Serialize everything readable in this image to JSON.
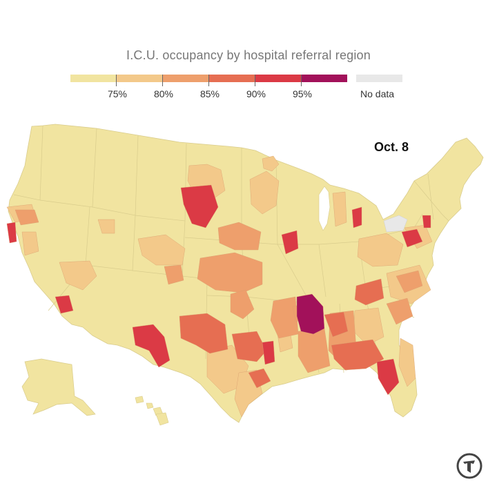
{
  "title": "I.C.U. occupancy by hospital referral region",
  "date_label": "Oct. 8",
  "legend": {
    "bins": [
      {
        "label": "",
        "color": "#f1e4a0"
      },
      {
        "label": "75%",
        "color": "#f3c98a"
      },
      {
        "label": "80%",
        "color": "#ee9f6c"
      },
      {
        "label": "85%",
        "color": "#e66e52"
      },
      {
        "label": "90%",
        "color": "#db3a45"
      },
      {
        "label": "95%",
        "color": "#a2115a"
      }
    ],
    "no_data_label": "No data",
    "no_data_color": "#e8e8e8"
  },
  "colors": {
    "base": "#f1e4a0",
    "border": "#d9cc8c",
    "light_orange": "#f3c98a",
    "orange": "#ee9f6c",
    "dark_orange": "#e66e52",
    "red": "#db3a45",
    "crimson": "#a2115a",
    "no_data": "#e8e8e8"
  },
  "logo_icon": "nyt-logo-icon"
}
